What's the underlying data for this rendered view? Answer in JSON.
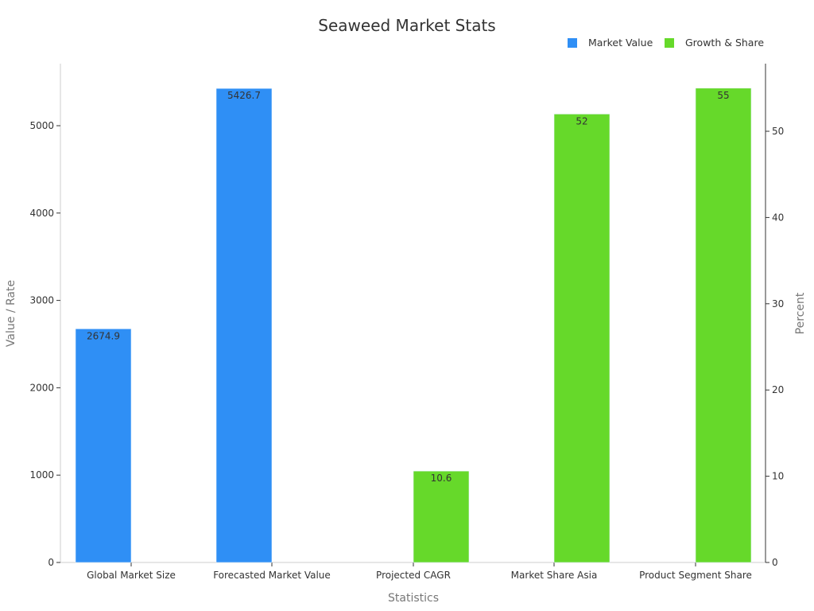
{
  "chart_data": {
    "type": "bar",
    "title": "Seaweed Market Stats",
    "xlabel": "Statistics",
    "ylabel": "Value / Rate",
    "y2label": "Percent",
    "categories": [
      "Global Market Size",
      "Forecasted Market Value",
      "Projected CAGR",
      "Market Share Asia",
      "Product Segment Share"
    ],
    "series": [
      {
        "name": "Market Value",
        "axis": "left",
        "color": "#2f8ff5",
        "values": [
          2674.9,
          5426.7,
          null,
          null,
          null
        ],
        "labels": [
          "2674.9",
          "5426.7",
          "",
          "",
          ""
        ]
      },
      {
        "name": "Growth & Share",
        "axis": "right",
        "color": "#66d92a",
        "values": [
          null,
          null,
          10.6,
          52,
          55
        ],
        "labels": [
          "",
          "",
          "10.6",
          "52",
          "55"
        ]
      }
    ],
    "ylim": [
      0,
      5700
    ],
    "y2lim": [
      0,
      58
    ],
    "yticks": [
      "0",
      "1000",
      "2000",
      "3000",
      "4000",
      "5000"
    ],
    "y2ticks": [
      "0",
      "10",
      "20",
      "30",
      "40",
      "50"
    ],
    "legend_position": "top-right",
    "grid": false
  },
  "legend": [
    {
      "label": "Market Value",
      "color": "#2f8ff5"
    },
    {
      "label": "Growth & Share",
      "color": "#66d92a"
    }
  ]
}
